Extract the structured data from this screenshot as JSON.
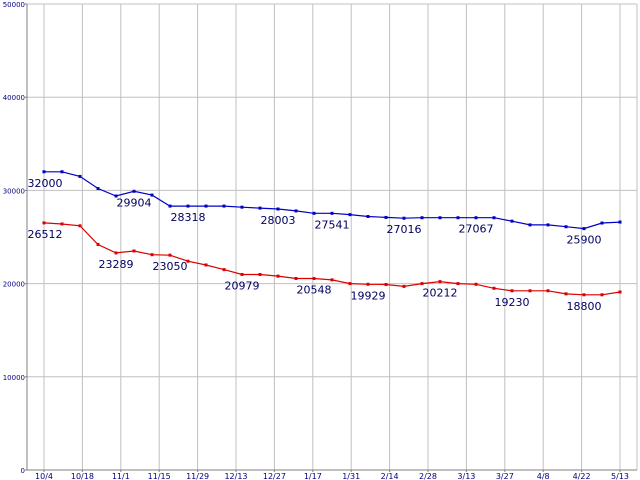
{
  "chart_data": {
    "type": "line",
    "title": "",
    "xlabel": "",
    "ylabel": "",
    "ylim": [
      0,
      50000
    ],
    "yticks": [
      0,
      10000,
      20000,
      30000,
      40000,
      50000
    ],
    "grid": true,
    "xticks": [
      "10/4",
      "10/18",
      "11/1",
      "11/15",
      "11/29",
      "12/13",
      "12/27",
      "1/17",
      "1/31",
      "2/14",
      "2/28",
      "3/13",
      "3/27",
      "4/8",
      "4/22",
      "5/13"
    ],
    "colors": {
      "upper": "#0000c8",
      "lower": "#dc0000",
      "grid": "#c0c0c0",
      "axis": "#808080"
    },
    "series": [
      {
        "color": "#0000c8",
        "values": [
          32000,
          32000,
          31500,
          30200,
          29400,
          29904,
          29500,
          28318,
          28318,
          28318,
          28318,
          28200,
          28100,
          28003,
          27800,
          27541,
          27541,
          27400,
          27200,
          27100,
          27016,
          27067,
          27067,
          27067,
          27067,
          27067,
          26700,
          26300,
          26300,
          26100,
          25900,
          26500,
          26600
        ]
      },
      {
        "color": "#dc0000",
        "values": [
          26512,
          26400,
          26200,
          24200,
          23289,
          23500,
          23100,
          23050,
          22400,
          22000,
          21500,
          20979,
          20979,
          20800,
          20548,
          20548,
          20400,
          20000,
          19929,
          19900,
          19700,
          20000,
          20212,
          20000,
          19929,
          19500,
          19230,
          19230,
          19230,
          18900,
          18800,
          18800,
          19100
        ]
      }
    ],
    "data_labels": [
      {
        "series": 0,
        "index": 0,
        "text": "32000"
      },
      {
        "series": 0,
        "index": 5,
        "text": "29904"
      },
      {
        "series": 0,
        "index": 8,
        "text": "28318"
      },
      {
        "series": 0,
        "index": 13,
        "text": "28003"
      },
      {
        "series": 0,
        "index": 16,
        "text": "27541"
      },
      {
        "series": 0,
        "index": 20,
        "text": "27016"
      },
      {
        "series": 0,
        "index": 24,
        "text": "27067"
      },
      {
        "series": 0,
        "index": 30,
        "text": "25900"
      },
      {
        "series": 1,
        "index": 0,
        "text": "26512"
      },
      {
        "series": 1,
        "index": 4,
        "text": "23289"
      },
      {
        "series": 1,
        "index": 7,
        "text": "23050"
      },
      {
        "series": 1,
        "index": 11,
        "text": "20979"
      },
      {
        "series": 1,
        "index": 15,
        "text": "20548"
      },
      {
        "series": 1,
        "index": 18,
        "text": "19929"
      },
      {
        "series": 1,
        "index": 22,
        "text": "20212"
      },
      {
        "series": 1,
        "index": 26,
        "text": "19230"
      },
      {
        "series": 1,
        "index": 30,
        "text": "18800"
      }
    ]
  }
}
